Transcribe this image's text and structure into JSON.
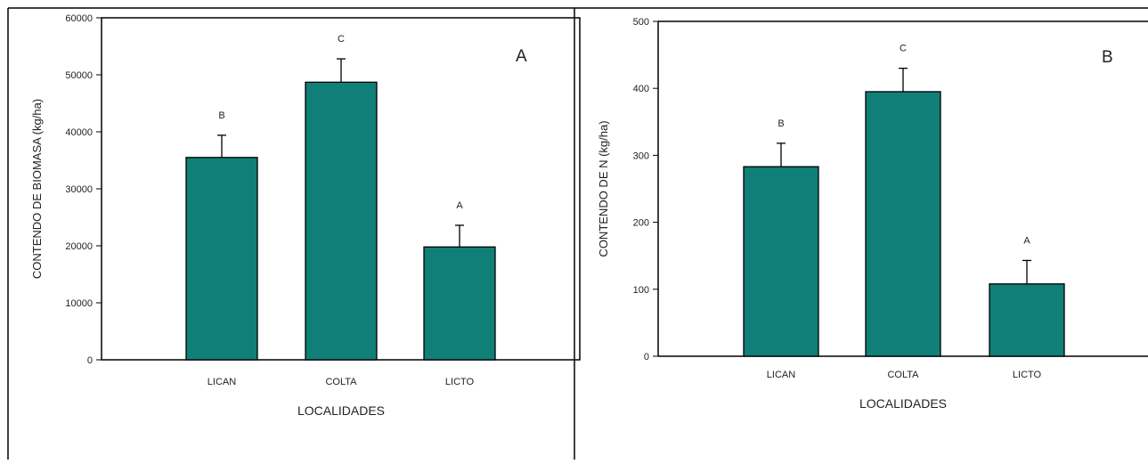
{
  "bar_color": "#0f7f78",
  "chart_data": [
    {
      "type": "bar",
      "panel_label": "A",
      "categories": [
        "LICAN",
        "COLTA",
        "LICTO"
      ],
      "values": [
        35500,
        48700,
        19800
      ],
      "errors": [
        3900,
        4100,
        3800
      ],
      "significance": [
        "B",
        "C",
        "A"
      ],
      "xlabel": "LOCALIDADES",
      "ylabel": "CONTENDO DE BIOMASA (kg/ha)",
      "ylim": [
        0,
        60000
      ],
      "yticks": [
        "0",
        "10000",
        "20000",
        "30000",
        "40000",
        "50000",
        "60000"
      ],
      "grid": false
    },
    {
      "type": "bar",
      "panel_label": "B",
      "categories": [
        "LICAN",
        "COLTA",
        "LICTO"
      ],
      "values": [
        283,
        395,
        108
      ],
      "errors": [
        35,
        35,
        35
      ],
      "significance": [
        "B",
        "C",
        "A"
      ],
      "xlabel": "LOCALIDADES",
      "ylabel": "CONTENDO DE N (kg/ha)",
      "ylim": [
        0,
        500
      ],
      "yticks": [
        "0",
        "100",
        "200",
        "300",
        "400",
        "500"
      ],
      "grid": false
    }
  ]
}
